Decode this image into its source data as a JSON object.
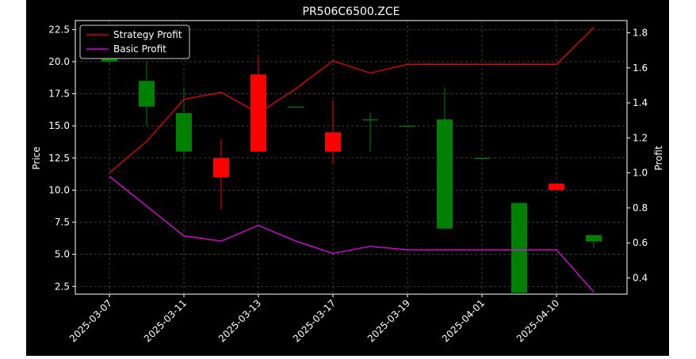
{
  "chart_data": {
    "type": "candlestick",
    "title": "PR506C6500.ZCE",
    "xlabel": "",
    "ylabel": "Price",
    "y2label": "Profit",
    "ylim": [
      1.9,
      23.2
    ],
    "y2lim": [
      0.307,
      1.87
    ],
    "yticks": [
      2.5,
      5.0,
      7.5,
      10.0,
      12.5,
      15.0,
      17.5,
      20.0,
      22.5
    ],
    "yticklabels": [
      "2.5",
      "5.0",
      "7.5",
      "10.0",
      "12.5",
      "15.0",
      "17.5",
      "20.0",
      "22.5"
    ],
    "y2ticks": [
      0.4,
      0.6,
      0.8,
      1.0,
      1.2,
      1.4,
      1.6,
      1.8
    ],
    "y2ticklabels": [
      "0.4",
      "0.6",
      "0.8",
      "1.0",
      "1.2",
      "1.4",
      "1.6",
      "1.8"
    ],
    "xticklabels": [
      "2025-03-07",
      "2025-03-11",
      "2025-03-13",
      "2025-03-17",
      "2025-03-19",
      "2025-04-01",
      "2025-04-10"
    ],
    "xtick_index": [
      0,
      2,
      4,
      6,
      8,
      10,
      12
    ],
    "grid": true,
    "legend_position": "upper-left",
    "candles": [
      {
        "open": 20.0,
        "high": 21.0,
        "low": 19.8,
        "close": 20.3
      },
      {
        "open": 16.5,
        "high": 20.0,
        "low": 15.0,
        "close": 18.5
      },
      {
        "open": 13.0,
        "high": 18.0,
        "low": 12.5,
        "close": 16.0
      },
      {
        "open": 12.5,
        "high": 14.0,
        "low": 8.5,
        "close": 11.0
      },
      {
        "open": 19.0,
        "high": 20.5,
        "low": 13.0,
        "close": 13.0
      },
      {
        "open": 16.5,
        "high": 16.5,
        "low": 16.5,
        "close": 16.5
      },
      {
        "open": 14.5,
        "high": 17.0,
        "low": 12.0,
        "close": 13.0
      },
      {
        "open": 15.5,
        "high": 16.0,
        "low": 13.0,
        "close": 15.5
      },
      {
        "open": 15.0,
        "high": 15.0,
        "low": 15.0,
        "close": 15.0
      },
      {
        "open": 7.0,
        "high": 18.0,
        "low": 7.0,
        "close": 15.5
      },
      {
        "open": 12.5,
        "high": 12.5,
        "low": 12.5,
        "close": 12.5
      },
      {
        "open": 2.0,
        "high": 9.0,
        "low": 2.0,
        "close": 9.0
      },
      {
        "open": 10.5,
        "high": 10.5,
        "low": 10.0,
        "close": 10.0
      },
      {
        "open": 6.0,
        "high": 6.5,
        "low": 5.5,
        "close": 6.5
      }
    ],
    "series": [
      {
        "name": "Strategy Profit",
        "color": "#ff0000",
        "x_index": [
          0,
          1,
          2,
          3,
          4,
          5,
          6,
          7,
          8,
          10,
          12,
          13
        ],
        "values": [
          1.0,
          1.18,
          1.42,
          1.46,
          1.34,
          1.48,
          1.64,
          1.57,
          1.62,
          1.62,
          1.62,
          1.83
        ]
      },
      {
        "name": "Basic Profit",
        "color": "#ff00ff",
        "x_index": [
          0,
          2,
          3,
          4,
          5,
          6,
          7,
          8,
          10,
          12,
          13
        ],
        "values": [
          0.98,
          0.64,
          0.61,
          0.7,
          0.61,
          0.54,
          0.58,
          0.56,
          0.56,
          0.56,
          0.32
        ]
      }
    ],
    "up_color": "#008000",
    "down_color": "#ff0000"
  }
}
